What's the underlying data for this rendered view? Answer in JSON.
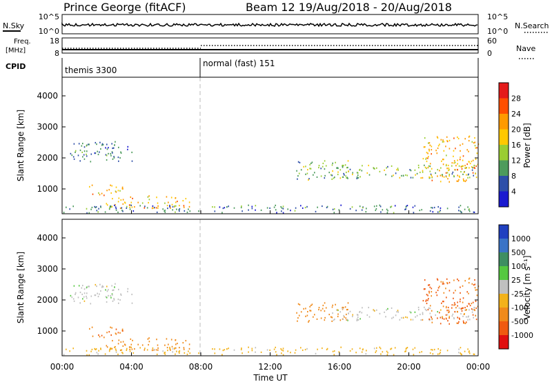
{
  "header": {
    "station": "Prince George (fitACF)",
    "beam_date": "Beam 12  19/Aug/2018 - 20/Aug/2018"
  },
  "strips": {
    "nsky_label": "N.Sky",
    "nsearch_label": "N.Search",
    "noise_ticks": [
      "10^5",
      "10^0"
    ],
    "noise_ticks_right": [
      "10^5",
      "10^0"
    ],
    "freq_label_1": "Freq.",
    "freq_label_2": "[MHz]",
    "freq_ticks": [
      "18",
      "8"
    ],
    "nave_label": "Nave",
    "nave_ticks": [
      "60",
      "0"
    ],
    "cpid_label": "CPID",
    "cpid_modes": [
      "themis 3300",
      "normal (fast) 151"
    ]
  },
  "panels": {
    "power": {
      "ylabel": "Slant Range [km]",
      "cbar_label": "Power [dB]",
      "cbar_ticks": [
        "28",
        "24",
        "20",
        "16",
        "12",
        "8",
        "4"
      ],
      "cbar_colors": [
        "#e41a1a",
        "#ff4f00",
        "#ff9a00",
        "#ffc800",
        "#9acd32",
        "#4d9b5c",
        "#2e4fa8",
        "#1a1ad0"
      ]
    },
    "velocity": {
      "ylabel": "Slant Range [km]",
      "cbar_label": "Velocity [m s⁻¹]",
      "cbar_ticks": [
        "1000",
        "500",
        "100",
        "25",
        "-25",
        "-100",
        "-500",
        "-1000"
      ],
      "cbar_colors": [
        "#2040c0",
        "#3a73c6",
        "#3e8e62",
        "#55c840",
        "#c0c0c0",
        "#f3b21a",
        "#f08a1a",
        "#f05a10",
        "#e01010"
      ]
    }
  },
  "axes": {
    "y_ticks": [
      "1000",
      "2000",
      "3000",
      "4000"
    ],
    "x_ticks": [
      "00:00",
      "04:00",
      "08:00",
      "12:00",
      "16:00",
      "20:00",
      "00:00"
    ],
    "xlabel": "Time UT"
  },
  "chart_data": {
    "type": "heatmap",
    "title": "Prince George (fitACF)",
    "subtitle": "Beam 12  19/Aug/2018 - 20/Aug/2018",
    "xlabel": "Time UT",
    "ylabel": "Slant Range [km]",
    "x_range_hours": [
      0,
      24
    ],
    "y_range_km": [
      200,
      4600
    ],
    "y_ticks_km": [
      1000,
      2000,
      3000,
      4000
    ],
    "x_ticks_hours": [
      0,
      4,
      8,
      12,
      16,
      20,
      24
    ],
    "mode_change_hour": 8,
    "power_colorbar_db": [
      4,
      8,
      12,
      16,
      20,
      24,
      28
    ],
    "velocity_colorbar_ms": [
      1000,
      500,
      100,
      25,
      -25,
      -100,
      -500,
      -1000
    ],
    "echo_regions": [
      {
        "t0": 0.3,
        "t1": 4.1,
        "r0": 1850,
        "r1": 2500,
        "power_db": 8,
        "velocity_ms": 0
      },
      {
        "t0": 1.5,
        "t1": 3.5,
        "r0": 750,
        "r1": 1100,
        "power_db": 20,
        "velocity_ms": -400
      },
      {
        "t0": 2.5,
        "t1": 7.5,
        "r0": 350,
        "r1": 750,
        "power_db": 20,
        "velocity_ms": -200
      },
      {
        "t0": 13.5,
        "t1": 16.5,
        "r0": 1250,
        "r1": 1900,
        "power_db": 12,
        "velocity_ms": -200
      },
      {
        "t0": 15.5,
        "t1": 24,
        "r0": 1300,
        "r1": 1750,
        "power_db": 12,
        "velocity_ms": 0
      },
      {
        "t0": 20.7,
        "t1": 24,
        "r0": 1200,
        "r1": 2700,
        "power_db": 20,
        "velocity_ms": -600
      },
      {
        "t0": 0,
        "t1": 24,
        "r0": 200,
        "r1": 450,
        "power_db": 8,
        "velocity_ms": -50
      }
    ]
  }
}
